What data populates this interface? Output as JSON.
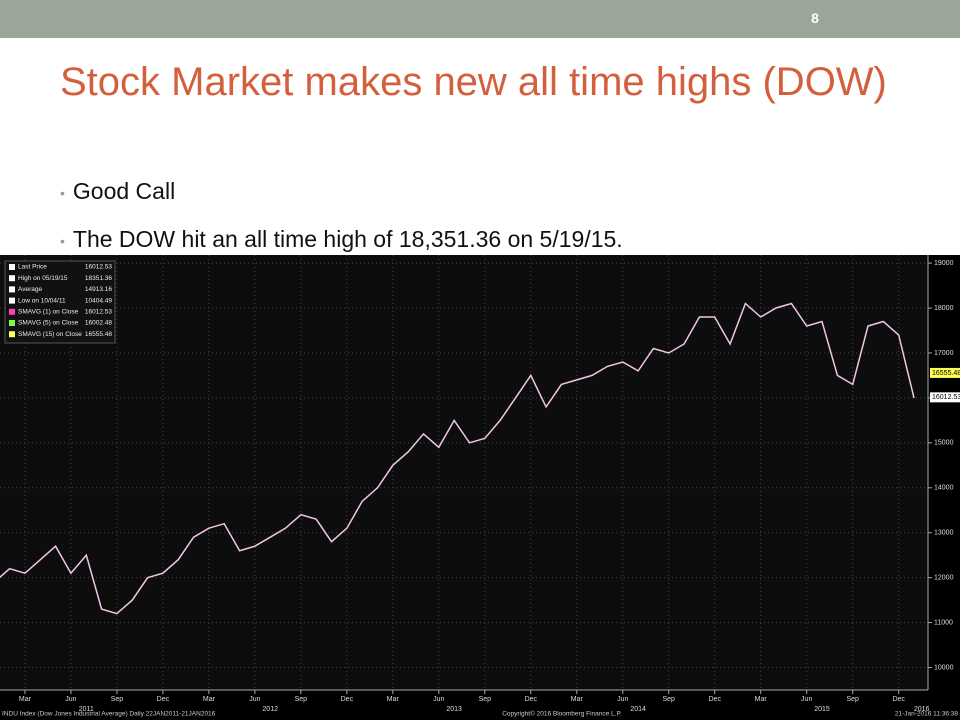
{
  "page_number": "8",
  "title": "Stock Market makes new all time highs (DOW)",
  "bullets": [
    "Good Call",
    "The DOW hit an all time high of 18,351.36 on 5/19/15."
  ],
  "chart_data": {
    "type": "line",
    "x": [
      "2011-01",
      "2011-02",
      "2011-03",
      "2011-04",
      "2011-05",
      "2011-06",
      "2011-07",
      "2011-08",
      "2011-09",
      "2011-10",
      "2011-11",
      "2011-12",
      "2012-01",
      "2012-02",
      "2012-03",
      "2012-04",
      "2012-05",
      "2012-06",
      "2012-07",
      "2012-08",
      "2012-09",
      "2012-10",
      "2012-11",
      "2012-12",
      "2013-01",
      "2013-02",
      "2013-03",
      "2013-04",
      "2013-05",
      "2013-06",
      "2013-07",
      "2013-08",
      "2013-09",
      "2013-10",
      "2013-11",
      "2013-12",
      "2014-01",
      "2014-02",
      "2014-03",
      "2014-04",
      "2014-05",
      "2014-06",
      "2014-07",
      "2014-08",
      "2014-09",
      "2014-10",
      "2014-11",
      "2014-12",
      "2015-01",
      "2015-02",
      "2015-03",
      "2015-04",
      "2015-05",
      "2015-06",
      "2015-07",
      "2015-08",
      "2015-09",
      "2015-10",
      "2015-11",
      "2015-12",
      "2016-01"
    ],
    "series": [
      {
        "name": "Last Price",
        "color": "#f2c6ea",
        "values": [
          11900,
          12200,
          12100,
          12400,
          12700,
          12100,
          12500,
          11300,
          11200,
          11500,
          12000,
          12100,
          12400,
          12900,
          13100,
          13200,
          12600,
          12700,
          12900,
          13100,
          13400,
          13300,
          12800,
          13100,
          13700,
          14000,
          14500,
          14800,
          15200,
          14900,
          15500,
          15000,
          15100,
          15500,
          16000,
          16500,
          15800,
          16300,
          16400,
          16500,
          16700,
          16800,
          16600,
          17100,
          17000,
          17200,
          17800,
          17800,
          17200,
          18100,
          17800,
          18000,
          18100,
          17600,
          17700,
          16500,
          16300,
          17600,
          17700,
          17400,
          16000
        ]
      }
    ],
    "xlim": [
      "2011-01",
      "2016-01"
    ],
    "xticks": [
      {
        "value": "2011-03",
        "label": "Mar"
      },
      {
        "value": "2011-06",
        "label": "Jun"
      },
      {
        "value": "2011-09",
        "label": "Sep"
      },
      {
        "value": "2011-12",
        "label": "Dec"
      },
      {
        "value": "2012-03",
        "label": "Mar"
      },
      {
        "value": "2012-06",
        "label": "Jun"
      },
      {
        "value": "2012-09",
        "label": "Sep"
      },
      {
        "value": "2012-12",
        "label": "Dec"
      },
      {
        "value": "2013-03",
        "label": "Mar"
      },
      {
        "value": "2013-06",
        "label": "Jun"
      },
      {
        "value": "2013-09",
        "label": "Sep"
      },
      {
        "value": "2013-12",
        "label": "Dec"
      },
      {
        "value": "2014-03",
        "label": "Mar"
      },
      {
        "value": "2014-06",
        "label": "Jun"
      },
      {
        "value": "2014-09",
        "label": "Sep"
      },
      {
        "value": "2014-12",
        "label": "Dec"
      },
      {
        "value": "2015-03",
        "label": "Mar"
      },
      {
        "value": "2015-06",
        "label": "Jun"
      },
      {
        "value": "2015-09",
        "label": "Sep"
      },
      {
        "value": "2015-12",
        "label": "Dec"
      }
    ],
    "year_labels": [
      "2011",
      "2012",
      "2013",
      "2014",
      "2015",
      "2016"
    ],
    "ylim": [
      9500,
      19180
    ],
    "yticks": [
      10000,
      11000,
      12000,
      13000,
      14000,
      15000,
      16000,
      17000,
      18000,
      19000
    ],
    "grid": true,
    "legend": [
      {
        "name": "Last Price",
        "value": 16012.53
      },
      {
        "name": "High on 05/19/15",
        "value": 18351.36
      },
      {
        "name": "Average",
        "value": 14913.16
      },
      {
        "name": "Low on 10/04/11",
        "value": 10404.49
      },
      {
        "name": "SMAVG (1) on Close",
        "value": 16012.53
      },
      {
        "name": "SMAVG (5) on Close",
        "value": 16002.48
      },
      {
        "name": "SMAVG (15) on Close",
        "value": 16555.48
      }
    ],
    "footer": [
      "INDU Index (Dow Jones Industrial Average)  Daily 22JAN2011-21JAN2016",
      "Copyright© 2016 Bloomberg Finance L.P.",
      "21-Jan-2016 11:36:38"
    ]
  }
}
